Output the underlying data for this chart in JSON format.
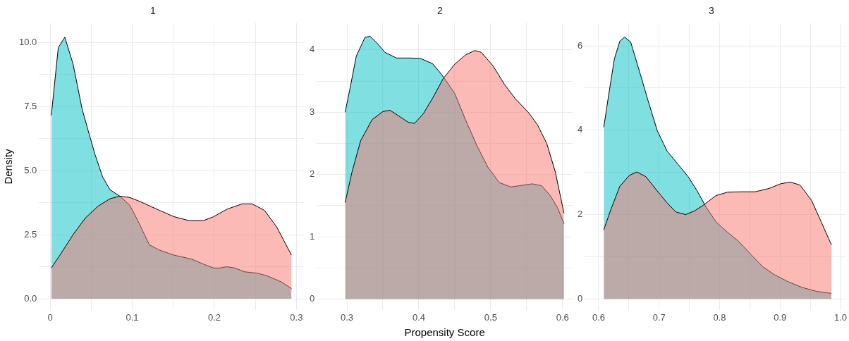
{
  "chart_data": [
    {
      "type": "area",
      "title": "1",
      "ylabel": "Density",
      "xlim": [
        -0.0135,
        0.31
      ],
      "ylim": [
        -0.45,
        10.75
      ],
      "grid": true,
      "xticks": [
        0,
        {
          "value": 0.05,
          "label": null
        },
        0.1,
        {
          "value": 0.15,
          "label": null
        },
        0.2,
        {
          "value": 0.25,
          "label": null
        },
        0.3
      ],
      "yticks": [
        {
          "value": 0,
          "label": "0.0"
        },
        {
          "value": 1.25,
          "label": null
        },
        2.5,
        {
          "value": 3.75,
          "label": null
        },
        {
          "value": 5,
          "label": "5.0"
        },
        {
          "value": 6.25,
          "label": null
        },
        7.5,
        {
          "value": 8.75,
          "label": null
        },
        {
          "value": 10,
          "label": "10.0"
        }
      ],
      "series": [
        {
          "color": "#f8766d",
          "x": [
            0.0015,
            0.013,
            0.028,
            0.043,
            0.058,
            0.073,
            0.085,
            0.097,
            0.109,
            0.133,
            0.151,
            0.169,
            0.187,
            0.199,
            0.216,
            0.234,
            0.246,
            0.261,
            0.276,
            0.294
          ],
          "values": [
            1.2,
            1.75,
            2.5,
            3.15,
            3.6,
            3.9,
            4.0,
            3.95,
            3.8,
            3.45,
            3.2,
            3.05,
            3.05,
            3.2,
            3.5,
            3.7,
            3.7,
            3.45,
            2.8,
            1.7
          ]
        },
        {
          "color": "#00bfc4",
          "x": [
            0.0015,
            0.01,
            0.018,
            0.028,
            0.039,
            0.046,
            0.055,
            0.064,
            0.073,
            0.085,
            0.097,
            0.106,
            0.121,
            0.133,
            0.151,
            0.172,
            0.187,
            0.199,
            0.207,
            0.215,
            0.225,
            0.237,
            0.252,
            0.264,
            0.282,
            0.294
          ],
          "values": [
            7.15,
            9.8,
            10.2,
            9.15,
            7.4,
            6.6,
            5.6,
            4.75,
            4.25,
            4.0,
            3.65,
            3.1,
            2.1,
            1.9,
            1.7,
            1.55,
            1.35,
            1.2,
            1.2,
            1.25,
            1.2,
            1.05,
            1.0,
            0.9,
            0.65,
            0.4
          ]
        }
      ]
    },
    {
      "type": "area",
      "title": "2",
      "xlabel": "Propensity Score",
      "xlim": [
        0.258,
        0.614
      ],
      "ylim": [
        -0.18,
        4.43
      ],
      "grid": true,
      "xticks": [
        0.3,
        {
          "value": 0.35,
          "label": null
        },
        0.4,
        {
          "value": 0.45,
          "label": null
        },
        0.5,
        {
          "value": 0.55,
          "label": null
        },
        0.6
      ],
      "yticks": [
        0,
        {
          "value": 0.5,
          "label": null
        },
        1,
        {
          "value": 1.5,
          "label": null
        },
        2,
        {
          "value": 2.5,
          "label": null
        },
        3,
        {
          "value": 3.5,
          "label": null
        },
        4
      ],
      "series": [
        {
          "color": "#f8766d",
          "x": [
            0.2975,
            0.307,
            0.319,
            0.335,
            0.35,
            0.36,
            0.372,
            0.385,
            0.394,
            0.406,
            0.419,
            0.434,
            0.45,
            0.465,
            0.478,
            0.487,
            0.503,
            0.519,
            0.534,
            0.553,
            0.565,
            0.578,
            0.59,
            0.602
          ],
          "values": [
            1.55,
            2.04,
            2.54,
            2.88,
            3.01,
            3.03,
            2.94,
            2.84,
            2.82,
            2.97,
            3.22,
            3.54,
            3.77,
            3.92,
            3.99,
            3.96,
            3.75,
            3.45,
            3.22,
            2.99,
            2.8,
            2.5,
            2.04,
            1.38
          ]
        },
        {
          "color": "#00bfc4",
          "x": [
            0.2975,
            0.3037,
            0.313,
            0.325,
            0.332,
            0.341,
            0.353,
            0.369,
            0.388,
            0.403,
            0.419,
            0.428,
            0.437,
            0.45,
            0.465,
            0.481,
            0.496,
            0.512,
            0.528,
            0.54,
            0.558,
            0.571,
            0.583,
            0.593,
            0.602
          ],
          "values": [
            3.0,
            3.35,
            3.9,
            4.2,
            4.22,
            4.12,
            3.96,
            3.87,
            3.87,
            3.86,
            3.78,
            3.66,
            3.52,
            3.3,
            2.88,
            2.46,
            2.12,
            1.87,
            1.8,
            1.82,
            1.85,
            1.82,
            1.66,
            1.47,
            1.21
          ]
        }
      ]
    },
    {
      "type": "area",
      "title": "3",
      "xlim": [
        0.577,
        1.008
      ],
      "ylim": [
        -0.27,
        6.54
      ],
      "grid": true,
      "xticks": [
        0.6,
        {
          "value": 0.65,
          "label": null
        },
        0.7,
        {
          "value": 0.75,
          "label": null
        },
        0.8,
        {
          "value": 0.85,
          "label": null
        },
        0.9,
        {
          "value": 0.95,
          "label": null
        },
        {
          "value": 1,
          "label": "1.0"
        }
      ],
      "yticks": [
        0,
        {
          "value": 1,
          "label": null
        },
        2,
        {
          "value": 3,
          "label": null
        },
        4,
        {
          "value": 5,
          "label": null
        },
        6
      ],
      "series": [
        {
          "color": "#f8766d",
          "x": [
            0.6085,
            0.62,
            0.635,
            0.651,
            0.663,
            0.678,
            0.697,
            0.713,
            0.728,
            0.744,
            0.759,
            0.774,
            0.794,
            0.813,
            0.836,
            0.859,
            0.882,
            0.901,
            0.917,
            0.933,
            0.952,
            0.968,
            0.985
          ],
          "values": [
            1.64,
            2.11,
            2.67,
            2.93,
            3.01,
            2.9,
            2.56,
            2.28,
            2.06,
            2.0,
            2.09,
            2.23,
            2.45,
            2.53,
            2.54,
            2.54,
            2.62,
            2.73,
            2.77,
            2.7,
            2.34,
            1.83,
            1.28
          ]
        },
        {
          "color": "#00bfc4",
          "x": [
            0.6085,
            0.6162,
            0.626,
            0.635,
            0.643,
            0.653,
            0.666,
            0.682,
            0.697,
            0.713,
            0.732,
            0.748,
            0.763,
            0.778,
            0.794,
            0.813,
            0.832,
            0.852,
            0.871,
            0.89,
            0.913,
            0.937,
            0.96,
            0.985
          ],
          "values": [
            4.07,
            4.8,
            5.69,
            6.11,
            6.21,
            6.09,
            5.47,
            4.69,
            3.99,
            3.51,
            3.18,
            2.9,
            2.56,
            2.17,
            1.83,
            1.58,
            1.36,
            1.05,
            0.77,
            0.58,
            0.41,
            0.27,
            0.18,
            0.13
          ]
        }
      ]
    }
  ]
}
